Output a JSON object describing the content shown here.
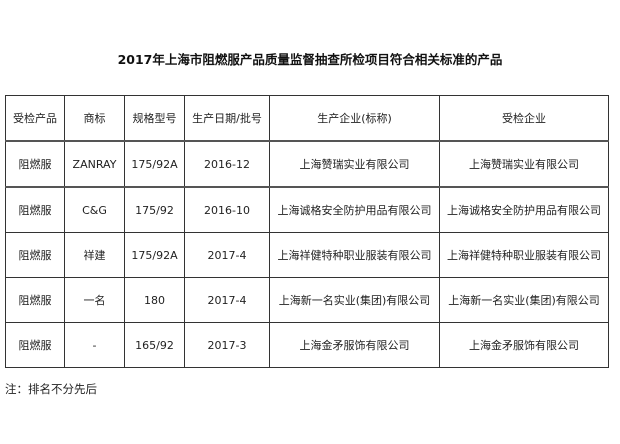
{
  "title": "2017年上海市阻燃服产品质量监督抽查所检项目符合相关标准的产品",
  "table": {
    "headers": [
      "受检产品",
      "商标",
      "规格型号",
      "生产日期/批号",
      "生产企业(标称)",
      "受检企业"
    ],
    "rows": [
      [
        "阻燃服",
        "ZANRAY",
        "175/92A",
        "2016-12",
        "上海赞瑞实业有限公司",
        "上海赞瑞实业有限公司"
      ],
      [
        "阻燃服",
        "C&G",
        "175/92",
        "2016-10",
        "上海诚格安全防护用品有限公司",
        "上海诚格安全防护用品有限公司"
      ],
      [
        "阻燃服",
        "祥建",
        "175/92A",
        "2017-4",
        "上海祥健特种职业服装有限公司",
        "上海祥健特种职业服装有限公司"
      ],
      [
        "阻燃服",
        "一名",
        "180",
        "2017-4",
        "上海新一名实业(集团)有限公司",
        "上海新一名实业(集团)有限公司"
      ],
      [
        "阻燃服",
        "-",
        "165/92",
        "2017-3",
        "上海金矛服饰有限公司",
        "上海金矛服饰有限公司"
      ]
    ]
  },
  "note": "注：排名不分先后"
}
